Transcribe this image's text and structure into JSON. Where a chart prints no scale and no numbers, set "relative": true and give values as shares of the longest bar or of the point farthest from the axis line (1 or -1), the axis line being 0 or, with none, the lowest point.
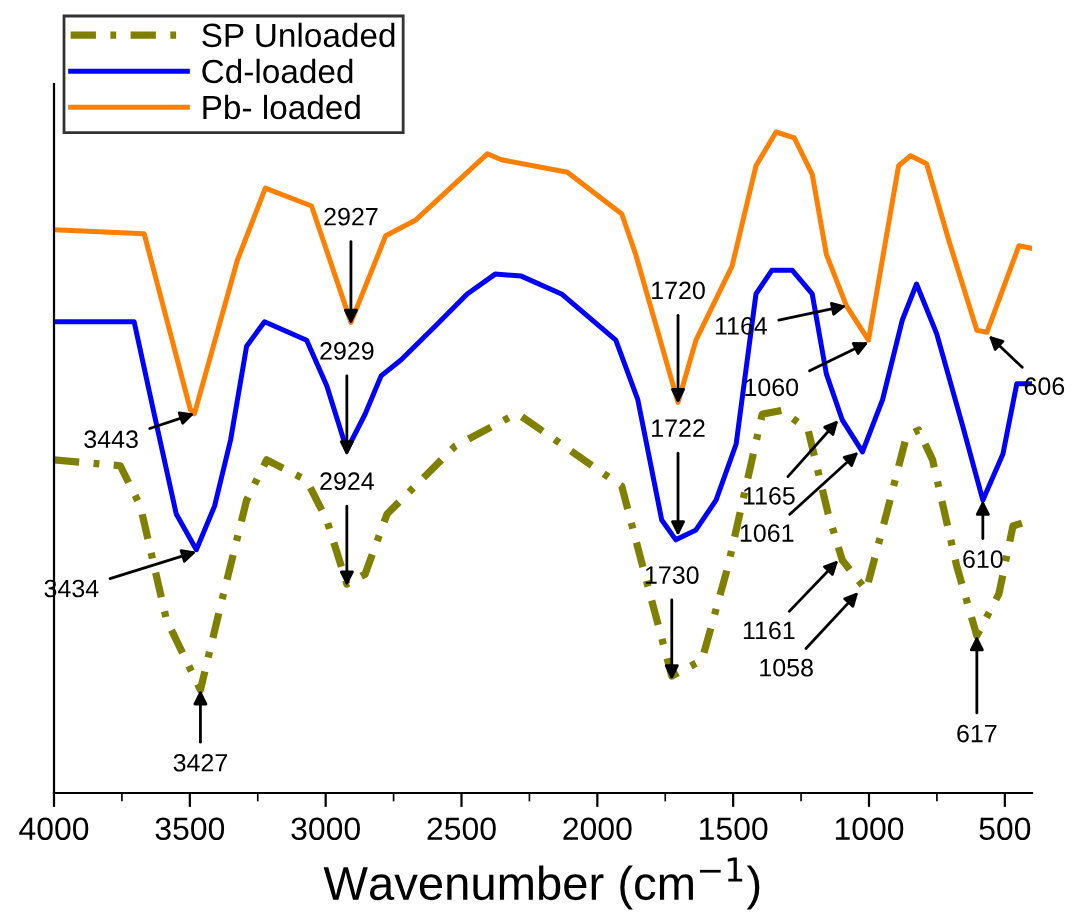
{
  "chart_data": {
    "type": "line",
    "relative": true,
    "xlabel": "Wavenumber (cm$^{−1}$)",
    "xlim": [
      4000,
      400
    ],
    "xticks": [
      4000,
      {
        "value": 3750,
        "label": null
      },
      3500,
      {
        "value": 3250,
        "label": null
      },
      3000,
      {
        "value": 2750,
        "label": null
      },
      2500,
      {
        "value": 2250,
        "label": null
      },
      2000,
      {
        "value": 1750,
        "label": null
      },
      1500,
      {
        "value": 1250,
        "label": null
      },
      1000,
      {
        "value": 750,
        "label": null
      },
      500
    ],
    "legend": "top left",
    "grid": false,
    "series": [
      {
        "name": "SP Unloaded",
        "color": "#808000",
        "line_style": "dashdot",
        "x": [
          4000,
          3756,
          3682,
          3586,
          3461,
          3387,
          3291,
          3217,
          3070,
          2996,
          2922,
          2855,
          2774,
          2523,
          2302,
          2280,
          1910,
          1814,
          1726,
          1615,
          1519,
          1393,
          1320,
          1224,
          1150,
          1098,
          1010,
          936,
          862,
          817,
          766,
          677,
          603,
          522,
          470,
          400
        ],
        "values": [
          0.504,
          0.495,
          0.434,
          0.262,
          0.156,
          0.283,
          0.443,
          0.504,
          0.473,
          0.413,
          0.316,
          0.331,
          0.422,
          0.525,
          0.573,
          0.57,
          0.464,
          0.313,
          0.177,
          0.201,
          0.343,
          0.573,
          0.579,
          0.549,
          0.422,
          0.352,
          0.307,
          0.422,
          0.54,
          0.549,
          0.504,
          0.343,
          0.238,
          0.301,
          0.404,
          0.413
        ]
      },
      {
        "name": "Cd-loaded",
        "color": "#0000ff",
        "line_style": "solid",
        "x": [
          4000,
          3705,
          3631,
          3550,
          3476,
          3409,
          3350,
          3291,
          3225,
          3070,
          2996,
          2922,
          2855,
          2796,
          2723,
          2597,
          2479,
          2376,
          2280,
          2132,
          1932,
          1851,
          1763,
          1711,
          1637,
          1563,
          1489,
          1416,
          1357,
          1283,
          1209,
          1157,
          1098,
          1024,
          950,
          877,
          825,
          751,
          655,
          581,
          507,
          456,
          400
        ],
        "values": [
          0.713,
          0.713,
          0.573,
          0.422,
          0.368,
          0.434,
          0.534,
          0.676,
          0.713,
          0.685,
          0.616,
          0.519,
          0.573,
          0.631,
          0.655,
          0.706,
          0.755,
          0.785,
          0.782,
          0.755,
          0.685,
          0.595,
          0.413,
          0.383,
          0.398,
          0.443,
          0.528,
          0.755,
          0.791,
          0.791,
          0.755,
          0.634,
          0.564,
          0.516,
          0.595,
          0.716,
          0.77,
          0.695,
          0.555,
          0.443,
          0.513,
          0.619,
          0.619
        ]
      },
      {
        "name": "Pb- loaded",
        "color": "#ff7f00",
        "line_style": "solid",
        "x": [
          4000,
          3668,
          3498,
          3483,
          3325,
          3222,
          3052,
          2907,
          2779,
          2668,
          2405,
          2353,
          2110,
          1910,
          1859,
          1703,
          1637,
          1504,
          1416,
          1342,
          1275,
          1209,
          1157,
          1083,
          1002,
          891,
          847,
          788,
          707,
          603,
          566,
          448,
          400
        ],
        "values": [
          0.852,
          0.846,
          0.58,
          0.574,
          0.806,
          0.915,
          0.888,
          0.712,
          0.843,
          0.867,
          0.967,
          0.958,
          0.939,
          0.876,
          0.815,
          0.591,
          0.685,
          0.797,
          0.949,
          1.0,
          0.991,
          0.936,
          0.815,
          0.737,
          0.685,
          0.949,
          0.964,
          0.952,
          0.837,
          0.7,
          0.697,
          0.828,
          0.824
        ]
      }
    ],
    "annotations": [
      {
        "text": "3443",
        "x": 3483,
        "y": 0.574
      },
      {
        "text": "2927",
        "x": 2907,
        "y": 0.709
      },
      {
        "text": "2929",
        "x": 2922,
        "y": 0.51
      },
      {
        "text": "3434",
        "x": 3476,
        "y": 0.365
      },
      {
        "text": "2924",
        "x": 2922,
        "y": 0.313
      },
      {
        "text": "3427",
        "x": 3461,
        "y": 0.156
      },
      {
        "text": "1720",
        "x": 1703,
        "y": 0.589
      },
      {
        "text": "1722",
        "x": 1703,
        "y": 0.389
      },
      {
        "text": "1730",
        "x": 1726,
        "y": 0.171
      },
      {
        "text": "1164",
        "x": 1083,
        "y": 0.737
      },
      {
        "text": "1060",
        "x": 1002,
        "y": 0.682
      },
      {
        "text": "606",
        "x": 559,
        "y": 0.692
      },
      {
        "text": "1165",
        "x": 1113,
        "y": 0.564
      },
      {
        "text": "1061",
        "x": 1039,
        "y": 0.516
      },
      {
        "text": "1161",
        "x": 1113,
        "y": 0.352
      },
      {
        "text": "1058",
        "x": 1039,
        "y": 0.304
      },
      {
        "text": "610",
        "x": 581,
        "y": 0.443
      },
      {
        "text": "617",
        "x": 603,
        "y": 0.238
      }
    ]
  }
}
